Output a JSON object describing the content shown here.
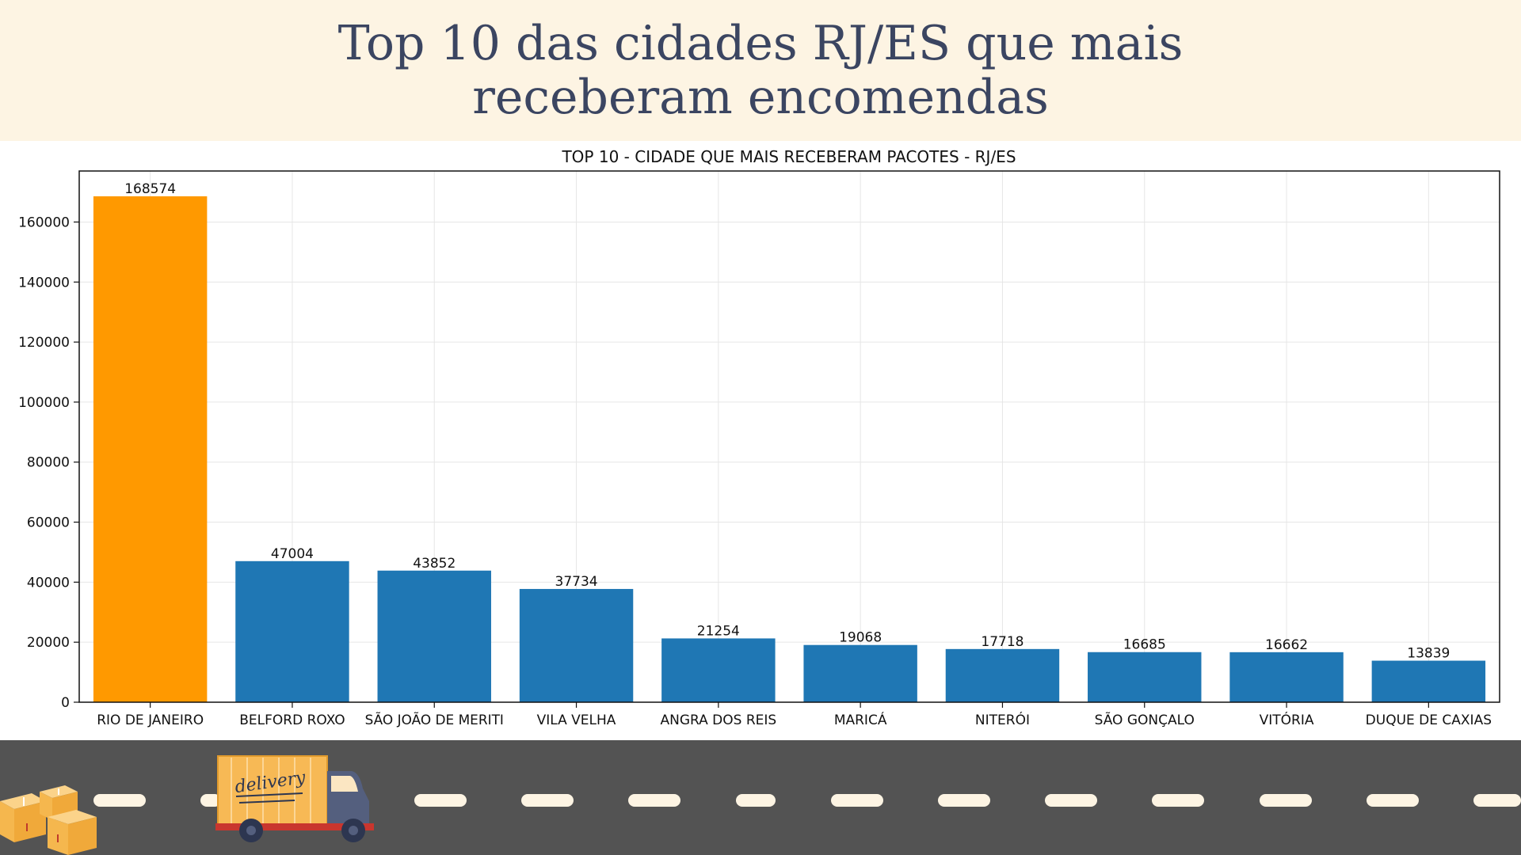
{
  "slide": {
    "title": "Top 10  das cidades RJ/ES que mais receberam encomendas"
  },
  "colors": {
    "header_bg": "#fdf4e3",
    "title_text": "#3b4561",
    "highlight_bar": "#ff9900",
    "bar": "#1f77b4",
    "road": "#535353",
    "road_dash": "#fdf4e3"
  },
  "illustration": {
    "truck_label": "delivery",
    "icons": [
      "delivery-truck-icon",
      "cardboard-boxes-icon"
    ]
  },
  "chart_data": {
    "type": "bar",
    "title": "TOP 10 - CIDADE QUE MAIS RECEBERAM PACOTES - RJ/ES",
    "xlabel": "",
    "ylabel": "",
    "categories": [
      "RIO DE JANEIRO",
      "BELFORD ROXO",
      "SÃO JOÃO DE MERITI",
      "VILA VELHA",
      "ANGRA DOS REIS",
      "MARICÁ",
      "NITERÓI",
      "SÃO GONÇALO",
      "VITÓRIA",
      "DUQUE DE CAXIAS"
    ],
    "values": [
      168574,
      47004,
      43852,
      37734,
      21254,
      19068,
      17718,
      16685,
      16662,
      13839
    ],
    "value_labels": [
      "168574",
      "47004",
      "43852",
      "37734",
      "21254",
      "19068",
      "17718",
      "16685",
      "16662",
      "13839"
    ],
    "highlight_index": 0,
    "ylim": [
      0,
      177000
    ],
    "yticks": [
      0,
      20000,
      40000,
      60000,
      80000,
      100000,
      120000,
      140000,
      160000
    ],
    "ytick_labels": [
      "0",
      "20000",
      "40000",
      "60000",
      "80000",
      "100000",
      "120000",
      "140000",
      "160000"
    ],
    "grid": true,
    "legend": "none"
  }
}
